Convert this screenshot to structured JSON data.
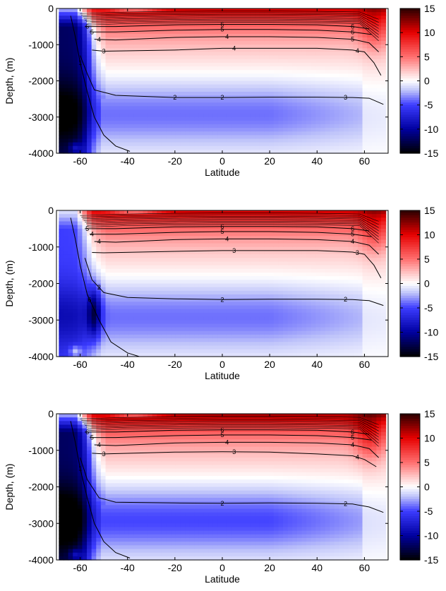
{
  "chart_data": [
    {
      "type": "heatmap",
      "title": "",
      "xlabel": "Latitude",
      "ylabel": "Depth, (m)",
      "xlim": [
        -70,
        70
      ],
      "ylim": [
        -4000,
        0
      ],
      "x_ticks": [
        -60,
        -40,
        -20,
        0,
        20,
        40,
        60
      ],
      "y_ticks": [
        0,
        -1000,
        -2000,
        -3000,
        -4000
      ],
      "colorbar": {
        "ticks": [
          15,
          10,
          5,
          0,
          -5,
          -10,
          -15
        ],
        "range": [
          -15,
          15
        ],
        "colormap": "blue-white-red"
      },
      "contour_labels": [
        "2",
        "2",
        "3",
        "3",
        "4",
        "4",
        "4",
        "4",
        "5",
        "5",
        "5",
        "6",
        "6",
        "6"
      ],
      "contours": [
        {
          "level": 2,
          "labels_at_lat": [
            -20,
            0,
            52
          ],
          "points": [
            [
              -60,
              -1300
            ],
            [
              -57,
              -1800
            ],
            [
              -54,
              -2250
            ],
            [
              -45,
              -2400
            ],
            [
              -20,
              -2460
            ],
            [
              0,
              -2460
            ],
            [
              20,
              -2450
            ],
            [
              40,
              -2450
            ],
            [
              55,
              -2460
            ],
            [
              62,
              -2480
            ],
            [
              68,
              -2650
            ]
          ]
        },
        {
          "level": 3,
          "labels_at_lat": [
            -50,
            5,
            57
          ],
          "points": [
            [
              -55,
              -1150
            ],
            [
              -50,
              -1180
            ],
            [
              -20,
              -1150
            ],
            [
              0,
              -1100
            ],
            [
              20,
              -1100
            ],
            [
              40,
              -1100
            ],
            [
              55,
              -1150
            ],
            [
              60,
              -1200
            ],
            [
              64,
              -1500
            ],
            [
              67,
              -1850
            ]
          ]
        },
        {
          "level": 4,
          "labels_at_lat": [
            -52,
            2,
            55
          ],
          "points": [
            [
              -54,
              -850
            ],
            [
              -45,
              -870
            ],
            [
              -20,
              -800
            ],
            [
              0,
              -780
            ],
            [
              20,
              -780
            ],
            [
              40,
              -800
            ],
            [
              55,
              -850
            ],
            [
              62,
              -950
            ],
            [
              66,
              -1200
            ]
          ]
        },
        {
          "level": 5,
          "labels_at_lat": [
            -55,
            0,
            55
          ],
          "points": [
            [
              -56,
              -650
            ],
            [
              -45,
              -650
            ],
            [
              -20,
              -600
            ],
            [
              0,
              -580
            ],
            [
              20,
              -580
            ],
            [
              40,
              -600
            ],
            [
              55,
              -650
            ],
            [
              63,
              -720
            ]
          ]
        },
        {
          "level": 6,
          "labels_at_lat": [
            -57,
            0,
            55
          ],
          "points": [
            [
              -58,
              -500
            ],
            [
              -45,
              -500
            ],
            [
              -20,
              -450
            ],
            [
              0,
              -440
            ],
            [
              20,
              -440
            ],
            [
              40,
              -450
            ],
            [
              55,
              -500
            ],
            [
              62,
              -560
            ]
          ]
        },
        {
          "level": 1,
          "labels_at_lat": [
            -60
          ],
          "points": [
            [
              -64,
              -200
            ],
            [
              -62,
              -800
            ],
            [
              -60,
              -1500
            ],
            [
              -57,
              -2300
            ],
            [
              -54,
              -3000
            ],
            [
              -50,
              -3500
            ],
            [
              -45,
              -3800
            ],
            [
              -39,
              -3950
            ]
          ]
        }
      ],
      "field_features": [
        {
          "name": "deep-negative-south",
          "lat_range": [
            -69,
            -52
          ],
          "depth_range": [
            -4000,
            -200
          ],
          "value": -12
        },
        {
          "name": "surface-warm",
          "lat_range": [
            -50,
            68
          ],
          "depth_range": [
            -1100,
            0
          ],
          "value": 11
        },
        {
          "name": "north-max",
          "lat": 64,
          "depth": -500,
          "value": 14
        },
        {
          "name": "intermediate-negative",
          "lat_range": [
            -50,
            60
          ],
          "depth_range": [
            -3900,
            -1800
          ],
          "value": -4
        },
        {
          "name": "south-surface-blue",
          "lat_range": [
            -50,
            -25
          ],
          "depth_range": [
            -100,
            0
          ],
          "value": -10
        }
      ]
    },
    {
      "type": "heatmap",
      "title": "",
      "xlabel": "Latitude",
      "ylabel": "Depth, (m)",
      "xlim": [
        -70,
        70
      ],
      "ylim": [
        -4000,
        0
      ],
      "x_ticks": [
        -60,
        -40,
        -20,
        0,
        20,
        40,
        60
      ],
      "y_ticks": [
        0,
        -1000,
        -2000,
        -3000,
        -4000
      ],
      "colorbar": {
        "ticks": [
          15,
          10,
          5,
          0,
          -5,
          -10,
          -15
        ],
        "range": [
          -15,
          15
        ],
        "colormap": "blue-white-red"
      },
      "contour_labels": [
        "2",
        "2",
        "2",
        "3",
        "3",
        "4",
        "4",
        "4",
        "4",
        "5",
        "5",
        "5",
        "6",
        "6",
        "6"
      ],
      "contours": [
        {
          "level": 2,
          "labels_at_lat": [
            -52,
            0,
            52
          ],
          "points": [
            [
              -58,
              -1300
            ],
            [
              -55,
              -1900
            ],
            [
              -50,
              -2250
            ],
            [
              -40,
              -2380
            ],
            [
              -20,
              -2420
            ],
            [
              0,
              -2440
            ],
            [
              20,
              -2430
            ],
            [
              40,
              -2430
            ],
            [
              55,
              -2440
            ],
            [
              62,
              -2470
            ],
            [
              68,
              -2600
            ]
          ]
        },
        {
          "level": 3,
          "labels_at_lat": [
            5,
            57
          ],
          "points": [
            [
              -55,
              -1150
            ],
            [
              -50,
              -1160
            ],
            [
              -20,
              -1120
            ],
            [
              0,
              -1100
            ],
            [
              20,
              -1100
            ],
            [
              40,
              -1100
            ],
            [
              55,
              -1140
            ],
            [
              60,
              -1200
            ],
            [
              64,
              -1500
            ],
            [
              67,
              -1850
            ]
          ]
        },
        {
          "level": 4,
          "labels_at_lat": [
            -52,
            2,
            55
          ],
          "points": [
            [
              -54,
              -850
            ],
            [
              -45,
              -870
            ],
            [
              -20,
              -800
            ],
            [
              0,
              -780
            ],
            [
              20,
              -780
            ],
            [
              40,
              -800
            ],
            [
              55,
              -850
            ],
            [
              62,
              -950
            ],
            [
              66,
              -1200
            ]
          ]
        },
        {
          "level": 5,
          "labels_at_lat": [
            -55,
            0,
            55
          ],
          "points": [
            [
              -56,
              -650
            ],
            [
              -45,
              -650
            ],
            [
              -20,
              -600
            ],
            [
              0,
              -580
            ],
            [
              20,
              -580
            ],
            [
              40,
              -600
            ],
            [
              55,
              -650
            ],
            [
              63,
              -720
            ]
          ]
        },
        {
          "level": 6,
          "labels_at_lat": [
            -57,
            0,
            55
          ],
          "points": [
            [
              -58,
              -500
            ],
            [
              -45,
              -500
            ],
            [
              -20,
              -450
            ],
            [
              0,
              -440
            ],
            [
              20,
              -440
            ],
            [
              40,
              -450
            ],
            [
              55,
              -500
            ],
            [
              62,
              -560
            ]
          ]
        },
        {
          "level": 1,
          "labels_at_lat": [
            -56
          ],
          "points": [
            [
              -64,
              -200
            ],
            [
              -62,
              -800
            ],
            [
              -60,
              -1500
            ],
            [
              -57,
              -2300
            ],
            [
              -52,
              -3000
            ],
            [
              -47,
              -3600
            ],
            [
              -40,
              -3900
            ],
            [
              -35,
              -4000
            ]
          ]
        }
      ],
      "field_features": [
        {
          "name": "deep-weak-negative-south",
          "lat_range": [
            -69,
            -52
          ],
          "depth_range": [
            -4000,
            -200
          ],
          "value": -5
        },
        {
          "name": "core-negative",
          "lat_range": [
            -58,
            -50
          ],
          "depth_range": [
            -3600,
            -1800
          ],
          "value": -8
        },
        {
          "name": "surface-warm",
          "lat_range": [
            -50,
            68
          ],
          "depth_range": [
            -1100,
            0
          ],
          "value": 11
        },
        {
          "name": "north-max",
          "lat": 64,
          "depth": -500,
          "value": 14
        },
        {
          "name": "intermediate-negative",
          "lat_range": [
            -50,
            60
          ],
          "depth_range": [
            -3900,
            -1800
          ],
          "value": -4
        },
        {
          "name": "south-surface-blue",
          "lat_range": [
            -50,
            -25
          ],
          "depth_range": [
            -100,
            0
          ],
          "value": -10
        }
      ]
    },
    {
      "type": "heatmap",
      "title": "",
      "xlabel": "Latitude",
      "ylabel": "Depth, (m)",
      "xlim": [
        -70,
        70
      ],
      "ylim": [
        -4000,
        0
      ],
      "x_ticks": [
        -60,
        -40,
        -20,
        0,
        20,
        40,
        60
      ],
      "y_ticks": [
        0,
        -1000,
        -2000,
        -3000,
        -4000
      ],
      "colorbar": {
        "ticks": [
          15,
          10,
          5,
          0,
          -5,
          -10,
          -15
        ],
        "range": [
          -15,
          15
        ],
        "colormap": "blue-white-red"
      },
      "contour_labels": [
        "2",
        "2",
        "3",
        "3",
        "4",
        "4",
        "4",
        "4",
        "5",
        "5",
        "5",
        "6",
        "6",
        "6"
      ],
      "contours": [
        {
          "level": 2,
          "labels_at_lat": [
            0,
            52
          ],
          "points": [
            [
              -60,
              -1200
            ],
            [
              -57,
              -1800
            ],
            [
              -52,
              -2300
            ],
            [
              -45,
              -2420
            ],
            [
              -20,
              -2440
            ],
            [
              0,
              -2450
            ],
            [
              20,
              -2440
            ],
            [
              40,
              -2450
            ],
            [
              55,
              -2470
            ],
            [
              62,
              -2550
            ],
            [
              68,
              -2700
            ]
          ]
        },
        {
          "level": 3,
          "labels_at_lat": [
            -50,
            5,
            57
          ],
          "points": [
            [
              -55,
              -1080
            ],
            [
              -50,
              -1100
            ],
            [
              -20,
              -1050
            ],
            [
              0,
              -1040
            ],
            [
              20,
              -1050
            ],
            [
              40,
              -1100
            ],
            [
              55,
              -1150
            ],
            [
              60,
              -1250
            ],
            [
              65,
              -1450
            ]
          ]
        },
        {
          "level": 4,
          "labels_at_lat": [
            -52,
            2,
            55
          ],
          "points": [
            [
              -54,
              -850
            ],
            [
              -45,
              -870
            ],
            [
              -20,
              -800
            ],
            [
              0,
              -780
            ],
            [
              20,
              -780
            ],
            [
              40,
              -800
            ],
            [
              55,
              -850
            ],
            [
              62,
              -950
            ],
            [
              66,
              -1200
            ]
          ]
        },
        {
          "level": 5,
          "labels_at_lat": [
            -55,
            0,
            55
          ],
          "points": [
            [
              -56,
              -650
            ],
            [
              -45,
              -650
            ],
            [
              -20,
              -600
            ],
            [
              0,
              -580
            ],
            [
              20,
              -580
            ],
            [
              40,
              -600
            ],
            [
              55,
              -650
            ],
            [
              63,
              -720
            ]
          ]
        },
        {
          "level": 6,
          "labels_at_lat": [
            -57,
            0,
            55
          ],
          "points": [
            [
              -58,
              -500
            ],
            [
              -45,
              -500
            ],
            [
              -20,
              -450
            ],
            [
              0,
              -440
            ],
            [
              20,
              -440
            ],
            [
              40,
              -450
            ],
            [
              55,
              -500
            ],
            [
              62,
              -560
            ]
          ]
        },
        {
          "level": 1,
          "labels_at_lat": [
            -60
          ],
          "points": [
            [
              -64,
              -200
            ],
            [
              -62,
              -800
            ],
            [
              -60,
              -1500
            ],
            [
              -57,
              -2300
            ],
            [
              -54,
              -3000
            ],
            [
              -50,
              -3500
            ],
            [
              -45,
              -3800
            ],
            [
              -39,
              -3950
            ]
          ]
        }
      ],
      "field_features": [
        {
          "name": "deep-negative-south",
          "lat_range": [
            -69,
            -52
          ],
          "depth_range": [
            -4000,
            -200
          ],
          "value": -12
        },
        {
          "name": "surface-warm",
          "lat_range": [
            -50,
            68
          ],
          "depth_range": [
            -1100,
            0
          ],
          "value": 12
        },
        {
          "name": "north-max",
          "lat": 62,
          "depth": -600,
          "value": 16
        },
        {
          "name": "intermediate-negative",
          "lat_range": [
            -50,
            60
          ],
          "depth_range": [
            -3900,
            -1800
          ],
          "value": -5
        },
        {
          "name": "south-surface-blue",
          "lat_range": [
            -50,
            -25
          ],
          "depth_range": [
            -100,
            0
          ],
          "value": -10
        }
      ]
    }
  ]
}
